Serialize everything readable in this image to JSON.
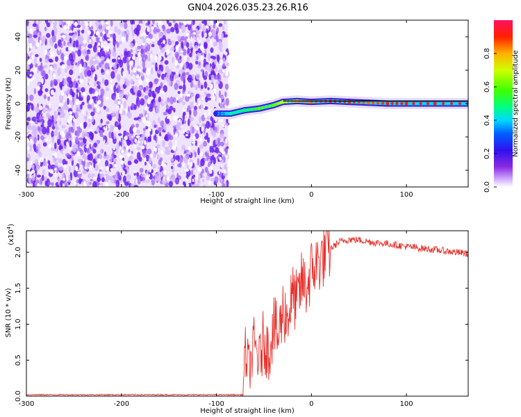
{
  "title": "GN04.2026.035.23.26.R16",
  "colors": {
    "noise": "#6a1ff0",
    "snr_line": "#e8302a",
    "frame": "#000000"
  },
  "chart_data": [
    {
      "type": "heatmap",
      "xlabel": "Height of straight line (km)",
      "ylabel": "Frequency (Hz)",
      "xlim": [
        -300,
        165
      ],
      "ylim": [
        -50,
        50
      ],
      "xticks": [
        -300,
        -200,
        -100,
        0,
        100
      ],
      "yticks": [
        -40,
        -20,
        0,
        20,
        40
      ],
      "colorbar": {
        "label": "Normalized spectral amplitude",
        "range": [
          0,
          1
        ],
        "ticks": [
          "0.0",
          "0.2",
          "0.4",
          "0.6",
          "0.8"
        ],
        "colormap": "rainbow"
      },
      "noise_region_x": [
        -300,
        -88
      ],
      "signal_track": [
        {
          "x": -100,
          "freq": -6,
          "amp": 0.25
        },
        {
          "x": -85,
          "freq": -6,
          "amp": 0.45
        },
        {
          "x": -70,
          "freq": -4,
          "amp": 0.5
        },
        {
          "x": -55,
          "freq": -3,
          "amp": 0.6
        },
        {
          "x": -40,
          "freq": -1,
          "amp": 0.6
        },
        {
          "x": -30,
          "freq": 1,
          "amp": 0.7
        },
        {
          "x": -15,
          "freq": 1.5,
          "amp": 0.8
        },
        {
          "x": 0,
          "freq": 1,
          "amp": 0.85
        },
        {
          "x": 20,
          "freq": 1.5,
          "amp": 0.9
        },
        {
          "x": 40,
          "freq": 1,
          "amp": 0.9
        },
        {
          "x": 60,
          "freq": 0.5,
          "amp": 0.85
        },
        {
          "x": 80,
          "freq": 0,
          "amp": 0.9
        },
        {
          "x": 100,
          "freq": 0,
          "amp": 0.9
        },
        {
          "x": 130,
          "freq": 0,
          "amp": 0.9
        },
        {
          "x": 165,
          "freq": 0,
          "amp": 0.9
        }
      ]
    },
    {
      "type": "line",
      "xlabel": "Height of straight line (km)",
      "ylabel": "SNR (10 * v/v)",
      "scale_label": "(x10",
      "scale_exp": "4",
      "xlim": [
        -300,
        165
      ],
      "ylim": [
        0,
        2.3
      ],
      "xticks": [
        -300,
        -200,
        -100,
        0,
        100
      ],
      "yticks": [
        "0.0",
        "0.5",
        "1.0",
        "1.5",
        "2.0"
      ],
      "series": [
        {
          "x": [
            -300,
            -250,
            -200,
            -150,
            -100,
            -72,
            -70,
            -65,
            -60,
            -55,
            -50,
            -45,
            -40,
            -35,
            -30,
            -25,
            -20,
            -15,
            -10,
            -5,
            0,
            10,
            20,
            30,
            40,
            50,
            60,
            70,
            80,
            90,
            100,
            120,
            140,
            165
          ],
          "y": [
            0.02,
            0.02,
            0.02,
            0.02,
            0.02,
            0.02,
            0.6,
            0.4,
            0.7,
            0.5,
            0.8,
            0.6,
            1.0,
            0.8,
            1.2,
            1.1,
            1.4,
            1.3,
            1.6,
            1.5,
            1.75,
            1.9,
            2.05,
            2.15,
            2.18,
            2.17,
            2.15,
            2.13,
            2.12,
            2.1,
            2.08,
            2.05,
            2.02,
            1.98
          ]
        }
      ]
    }
  ]
}
